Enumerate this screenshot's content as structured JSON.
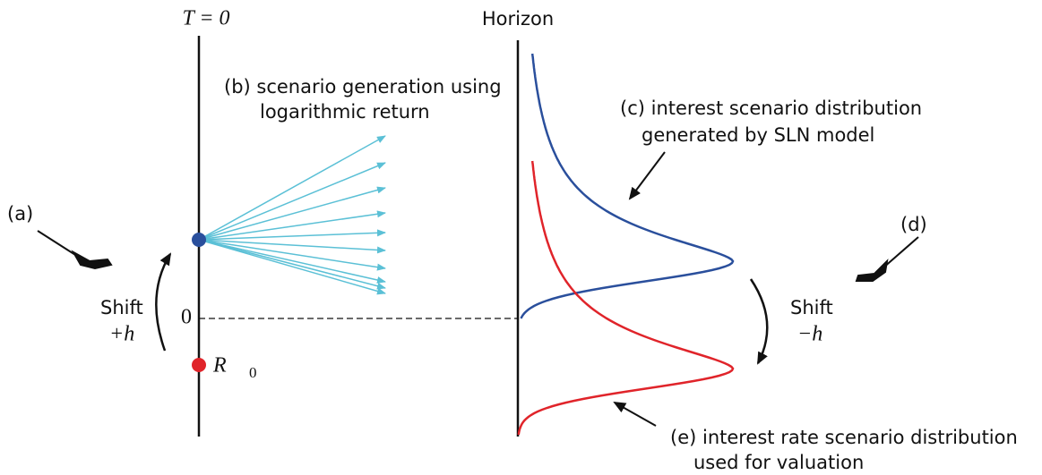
{
  "labels": {
    "t0": "T = 0",
    "horizon": "Horizon",
    "b": [
      "(b) scenario generation using",
      "logarithmic return"
    ],
    "c": [
      "(c) interest scenario distribution",
      "generated by SLN model"
    ],
    "a": "(a)",
    "d": "(d)",
    "shift_left": [
      "Shift",
      "+h"
    ],
    "shift_right": [
      "Shift",
      "−h"
    ],
    "zero": "0",
    "r": "R",
    "r_sub": "0",
    "e": [
      "(e) interest rate scenario distribution",
      "used for valuation"
    ]
  }
}
